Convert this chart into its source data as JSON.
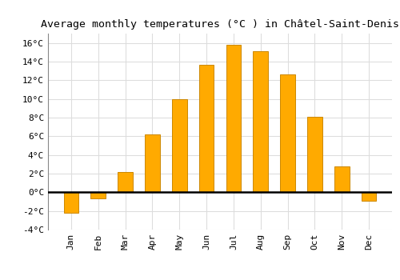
{
  "title": "Average monthly temperatures (°C ) in Châtel-Saint-Denis",
  "months": [
    "Jan",
    "Feb",
    "Mar",
    "Apr",
    "May",
    "Jun",
    "Jul",
    "Aug",
    "Sep",
    "Oct",
    "Nov",
    "Dec"
  ],
  "temperatures": [
    -2.2,
    -0.7,
    2.2,
    6.2,
    10.0,
    13.7,
    15.8,
    15.1,
    12.6,
    8.1,
    2.8,
    -0.9
  ],
  "bar_color": "#FFAA00",
  "bar_edge_color": "#CC8800",
  "ylim": [
    -4,
    17
  ],
  "yticks": [
    -4,
    -2,
    0,
    2,
    4,
    6,
    8,
    10,
    12,
    14,
    16
  ],
  "background_color": "#ffffff",
  "grid_color": "#dddddd",
  "title_fontsize": 9.5,
  "tick_fontsize": 8,
  "zero_line_color": "#000000",
  "bar_width": 0.55
}
